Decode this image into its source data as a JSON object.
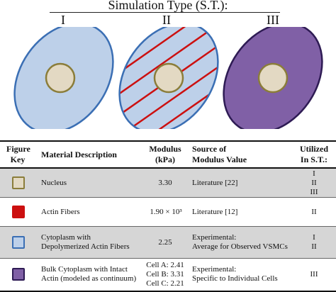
{
  "header": {
    "title": "Simulation Type (S.T.):",
    "types": [
      "I",
      "II",
      "III"
    ]
  },
  "colors": {
    "nucleus_fill": "#e3d9c3",
    "nucleus_stroke": "#8b7d3a",
    "cytoplasm_fill": "#bdd0e9",
    "cytoplasm_stroke": "#3b6fb4",
    "actin": "#cc1010",
    "bulk_fill": "#8060a6",
    "bulk_stroke": "#2e1b54",
    "row_grey": "#d6d6d6"
  },
  "table": {
    "headers": {
      "figure_key": [
        "Figure",
        "Key"
      ],
      "material": "Material Description",
      "modulus": [
        "Modulus",
        "(kPa)"
      ],
      "source": [
        "Source of",
        "Modulus Value"
      ],
      "utilized": [
        "Utilized",
        "In S.T.:"
      ]
    },
    "rows": [
      {
        "key_icon": "nucleus-swatch-icon",
        "material": [
          "Nucleus"
        ],
        "modulus": [
          "3.30"
        ],
        "source": [
          "Literature [22]"
        ],
        "utilized": [
          "I",
          "II",
          "III"
        ]
      },
      {
        "key_icon": "actin-fibers-swatch-icon",
        "material": [
          "Actin Fibers"
        ],
        "modulus": [
          "1.90 × 10³"
        ],
        "source": [
          "Literature [12]"
        ],
        "utilized": [
          "II"
        ]
      },
      {
        "key_icon": "cytoplasm-swatch-icon",
        "material": [
          "Cytoplasm with",
          "Depolymerized Actin Fibers"
        ],
        "modulus": [
          "2.25"
        ],
        "source": [
          "Experimental:",
          "Average for Observed VSMCs"
        ],
        "utilized": [
          "I",
          "II"
        ]
      },
      {
        "key_icon": "bulk-cytoplasm-swatch-icon",
        "material": [
          "Bulk Cytoplasm with Intact",
          "Actin (modeled as continuum)"
        ],
        "modulus": [
          "Cell A: 2.41",
          "Cell B: 3.31",
          "Cell C: 2.21"
        ],
        "source": [
          "Experimental:",
          "Specific to Individual Cells"
        ],
        "utilized": [
          "III"
        ]
      }
    ]
  }
}
